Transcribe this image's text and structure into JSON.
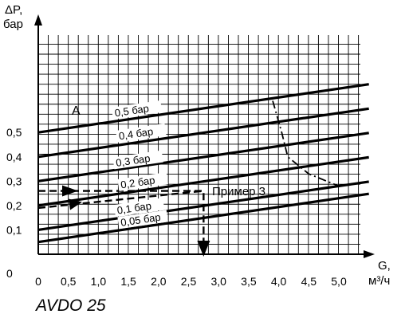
{
  "chart_data": {
    "type": "line",
    "title": "AVDO 25",
    "ylabel_line1": "ΔP,",
    "ylabel_line2": "бар",
    "xlabel_line1": "G,",
    "xlabel_line2": "м³/ч",
    "xlim": [
      0,
      5.5
    ],
    "ylim": [
      0,
      0.9
    ],
    "xticks": [
      0,
      0.5,
      1.0,
      1.5,
      2.0,
      2.5,
      3.0,
      3.5,
      4.0,
      4.5,
      5.0
    ],
    "xtick_labels": [
      "0",
      "0,5",
      "1,0",
      "1,5",
      "2,0",
      "2,5",
      "3,0",
      "3,5",
      "4,0",
      "4,5",
      "5,0"
    ],
    "yticks": [
      0,
      0.1,
      0.2,
      0.3,
      0.4,
      0.5
    ],
    "ytick_labels": [
      "0",
      "0,1",
      "0,2",
      "0,3",
      "0,4",
      "0,5"
    ],
    "grid": true,
    "series": [
      {
        "name": "0,05 бар",
        "x": [
          0,
          5.0
        ],
        "y": [
          0.05,
          0.23
        ]
      },
      {
        "name": "0,1 бар",
        "x": [
          0,
          5.0
        ],
        "y": [
          0.1,
          0.28
        ]
      },
      {
        "name": "0,2 бар",
        "x": [
          0,
          5.0
        ],
        "y": [
          0.2,
          0.38
        ]
      },
      {
        "name": "0,3 бар",
        "x": [
          0,
          5.0
        ],
        "y": [
          0.3,
          0.48
        ]
      },
      {
        "name": "0,4 бар",
        "x": [
          0,
          5.0
        ],
        "y": [
          0.4,
          0.58
        ]
      },
      {
        "name": "0,5 бар",
        "x": [
          0,
          5.0
        ],
        "y": [
          0.5,
          0.68
        ]
      }
    ],
    "limit_curve": {
      "x": [
        3.9,
        4.05,
        4.15,
        4.5,
        5.0
      ],
      "y": [
        0.63,
        0.5,
        0.4,
        0.33,
        0.28
      ]
    },
    "example_path_1": {
      "x": [
        0,
        2.75,
        2.75
      ],
      "y": [
        0.26,
        0.26,
        0
      ]
    },
    "example_path_2": {
      "x": [
        0,
        2.75
      ],
      "y": [
        0.19,
        0.26
      ]
    },
    "annotations": [
      "A",
      "Пример 3"
    ]
  }
}
